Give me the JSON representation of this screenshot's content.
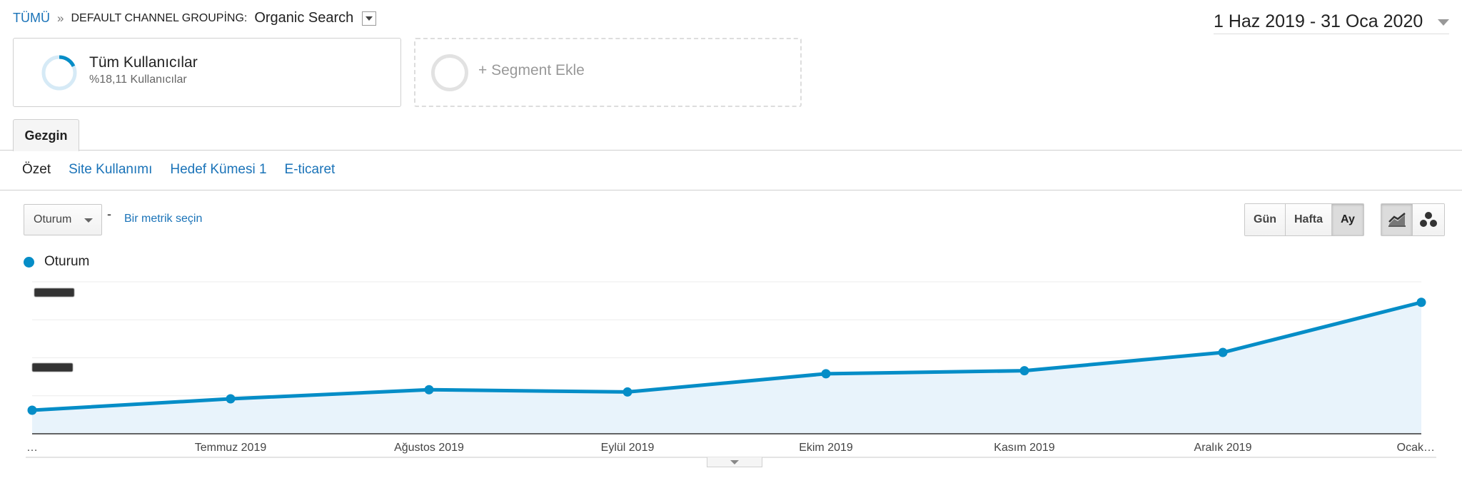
{
  "breadcrumb": {
    "all": "TÜMÜ",
    "separator": "»",
    "grouping": "DEFAULT CHANNEL GROUPİNG:",
    "value": "Organic Search"
  },
  "date_range": "1 Haz 2019 - 31 Oca 2020",
  "segments": {
    "main": {
      "title": "Tüm Kullanıcılar",
      "subtitle": "%18,11 Kullanıcılar",
      "share": 0.1811
    },
    "add": {
      "label": "+ Segment Ekle"
    }
  },
  "tabs": {
    "explorer": "Gezgin"
  },
  "subnav": {
    "active": "Özet",
    "links": [
      "Site Kullanımı",
      "Hedef Kümesi 1",
      "E-ticaret"
    ]
  },
  "controls": {
    "metric": "Oturum",
    "dash": "-",
    "pick_metric": "Bir metrik seçin",
    "periods": [
      "Gün",
      "Hafta",
      "Ay"
    ],
    "active_period": "Ay",
    "icons": {
      "line_chart": "line-chart-icon",
      "motion_chart": "motion-chart-icon"
    }
  },
  "legend": {
    "series": "Oturum",
    "color": "#058dc7"
  },
  "chart_data": {
    "type": "area",
    "x": [
      "…",
      "Temmuz 2019",
      "Ağustos 2019",
      "Eylül 2019",
      "Ekim 2019",
      "Kasım 2019",
      "Aralık 2019",
      "Ocak…"
    ],
    "series": [
      {
        "name": "Oturum",
        "values": [
          0.31,
          0.46,
          0.58,
          0.55,
          0.79,
          0.83,
          1.07,
          1.73
        ]
      }
    ],
    "y_tick_labels_redacted": true,
    "grid": true,
    "ylim": [
      0,
      2
    ]
  }
}
